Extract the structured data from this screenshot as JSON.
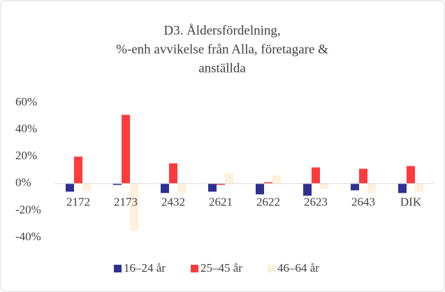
{
  "chart_data": {
    "type": "bar",
    "title": [
      "D3. Åldersfördelning,",
      "%-enh avvikelse från Alla, företagare &",
      "anställda"
    ],
    "categories": [
      "2172",
      "2173",
      "2432",
      "2621",
      "2622",
      "2623",
      "2643",
      "DIK"
    ],
    "series": [
      {
        "name": "16–24 år",
        "color": "#2e3192",
        "values": [
          -6,
          -1,
          -7,
          -6,
          -8,
          -9,
          -5,
          -7
        ]
      },
      {
        "name": "25–45 år",
        "color": "#ff3b3b",
        "values": [
          20,
          51,
          15,
          -1,
          1,
          12,
          11,
          13
        ]
      },
      {
        "name": "46–64 år",
        "color": "#fdf1dc",
        "values": [
          -5,
          -35,
          -7,
          8,
          6,
          -4,
          -7,
          -6
        ]
      }
    ],
    "ylim": [
      -40,
      60
    ],
    "yticks": [
      {
        "value": -40,
        "label": "-40%"
      },
      {
        "value": -20,
        "label": "-20%"
      },
      {
        "value": 0,
        "label": "0%"
      },
      {
        "value": 20,
        "label": "20%"
      },
      {
        "value": 40,
        "label": "40%"
      },
      {
        "value": 60,
        "label": "60%"
      }
    ],
    "grid": false,
    "legend": "bottom"
  }
}
